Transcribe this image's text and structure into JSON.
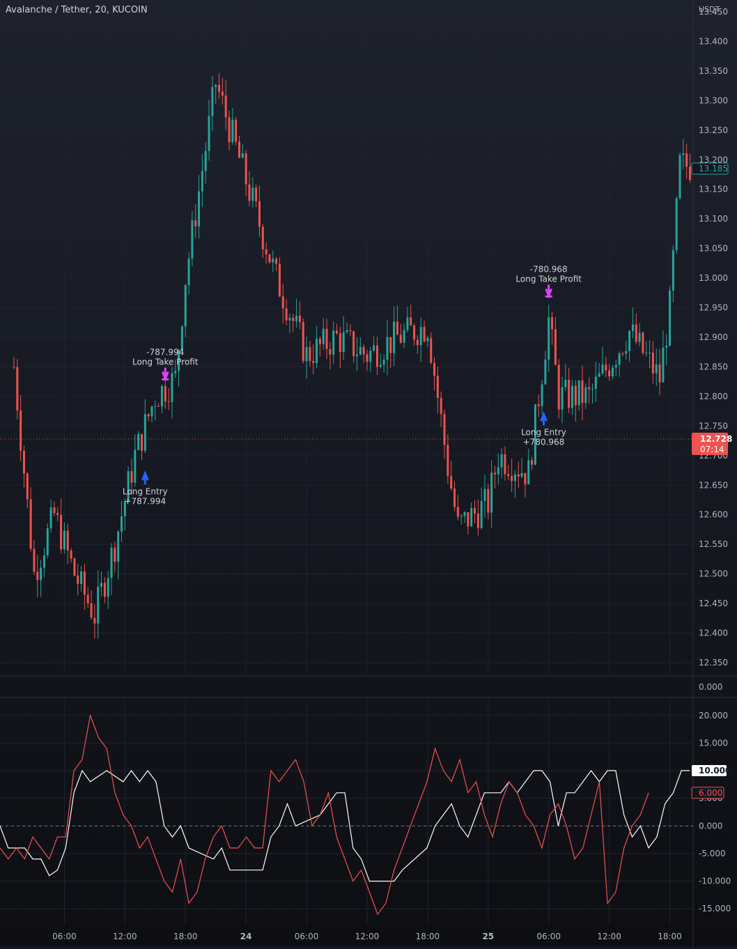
{
  "header": {
    "title": "Avalanche / Tether, 20, KUCOIN",
    "currency": "USDT"
  },
  "price_axis": {
    "ticks": [
      "13.450",
      "13.400",
      "13.350",
      "13.300",
      "13.250",
      "13.200",
      "13.150",
      "13.100",
      "13.050",
      "13.000",
      "12.950",
      "12.900",
      "12.850",
      "12.800",
      "12.750",
      "12.700",
      "12.650",
      "12.600",
      "12.550",
      "12.500",
      "12.450",
      "12.400",
      "12.350"
    ],
    "last_price_label": "13.185",
    "current_price_label": "12.728",
    "countdown_label": "07:14",
    "separator_value_label": "0.000"
  },
  "indicator_axis": {
    "ticks": [
      "20.000",
      "15.000",
      "10.000",
      "5.000",
      "0.000",
      "-5.000",
      "-10.000",
      "-15.000"
    ],
    "white_value_label": "10.000",
    "red_value_label": "6.000"
  },
  "time_axis": {
    "labels": [
      "06:00",
      "12:00",
      "18:00",
      "24",
      "06:00",
      "12:00",
      "18:00",
      "25",
      "06:00",
      "12:00",
      "18:00"
    ],
    "bold_labels": [
      "24",
      "25"
    ]
  },
  "trades": [
    {
      "entry_label": "Long Entry",
      "entry_value": "+787.994",
      "exit_label": "Long Take Profit",
      "exit_value": "-787.994"
    },
    {
      "entry_label": "Long Entry",
      "entry_value": "+780.968",
      "exit_label": "Long Take Profit",
      "exit_value": "-780.968"
    }
  ],
  "colors": {
    "background": "#131722",
    "up": "#26a69a",
    "down": "#ef5350",
    "entry_marker": "#2962ff",
    "exit_marker": "#e040fb",
    "white_line": "#ffffff",
    "red_line": "#ef5350"
  },
  "chart_data": [
    {
      "type": "candlestick",
      "title": "Avalanche / Tether, 20, KUCOIN",
      "ylabel": "USDT",
      "ylim": [
        12.33,
        13.47
      ],
      "x_range_hours": [
        "Jun 23 ~01:00",
        "Jun 25 ~21:00"
      ],
      "interval_minutes": 20,
      "current_price": 12.728,
      "last_close": 13.185,
      "approx_path_keypoints": [
        {
          "time": "23 01:00",
          "price": 12.85
        },
        {
          "time": "23 03:00",
          "price": 12.5
        },
        {
          "time": "23 05:00",
          "price": 12.6
        },
        {
          "time": "23 07:00",
          "price": 12.5
        },
        {
          "time": "23 09:00",
          "price": 12.43
        },
        {
          "time": "23 11:00",
          "price": 12.55
        },
        {
          "time": "23 13:00",
          "price": 12.7
        },
        {
          "time": "23 15:00",
          "price": 12.8
        },
        {
          "time": "23 17:00",
          "price": 12.83
        },
        {
          "time": "23 18:00",
          "price": 13.0
        },
        {
          "time": "23 21:00",
          "price": 13.33
        },
        {
          "time": "23 23:00",
          "price": 13.22
        },
        {
          "time": "24 03:00",
          "price": 13.0
        },
        {
          "time": "24 06:00",
          "price": 12.87
        },
        {
          "time": "24 09:00",
          "price": 12.9
        },
        {
          "time": "24 12:00",
          "price": 12.87
        },
        {
          "time": "24 15:00",
          "price": 12.9
        },
        {
          "time": "24 18:00",
          "price": 12.92
        },
        {
          "time": "24 20:00",
          "price": 12.68
        },
        {
          "time": "24 21:00",
          "price": 12.58
        },
        {
          "time": "25 00:00",
          "price": 12.62
        },
        {
          "time": "25 01:00",
          "price": 12.7
        },
        {
          "time": "25 04:00",
          "price": 12.67
        },
        {
          "time": "25 05:00",
          "price": 12.8
        },
        {
          "time": "25 06:00",
          "price": 12.93
        },
        {
          "time": "25 07:00",
          "price": 12.8
        },
        {
          "time": "25 10:00",
          "price": 12.8
        },
        {
          "time": "25 14:00",
          "price": 12.91
        },
        {
          "time": "25 17:00",
          "price": 12.83
        },
        {
          "time": "25 18:00",
          "price": 12.95
        },
        {
          "time": "25 19:00",
          "price": 13.19
        }
      ],
      "annotations": [
        {
          "text": "Long Entry +787.994",
          "time": "23 14:00",
          "price": 12.67
        },
        {
          "text": "Long Take Profit -787.994",
          "time": "23 16:00",
          "price": 12.83
        },
        {
          "text": "Long Entry +780.968",
          "time": "25 05:30",
          "price": 12.77
        },
        {
          "text": "Long Take Profit -780.968",
          "time": "25 06:00",
          "price": 12.97
        }
      ]
    },
    {
      "type": "line",
      "ylim": [
        -18,
        23
      ],
      "zero_line": true,
      "series": [
        {
          "color": "#ffffff",
          "last_value": 10.0,
          "points": [
            [
              1,
              0
            ],
            [
              2,
              -4
            ],
            [
              4,
              -4
            ],
            [
              5,
              -6
            ],
            [
              6,
              -6
            ],
            [
              7,
              -9
            ],
            [
              8,
              -8
            ],
            [
              9,
              -4
            ],
            [
              10,
              6
            ],
            [
              11,
              10
            ],
            [
              12,
              8
            ],
            [
              14,
              10
            ],
            [
              16,
              8
            ],
            [
              17,
              10
            ],
            [
              18,
              8
            ],
            [
              19,
              10
            ],
            [
              20,
              8
            ],
            [
              21,
              0
            ],
            [
              22,
              -2
            ],
            [
              23,
              0
            ],
            [
              24,
              -4
            ],
            [
              27,
              -6
            ],
            [
              28,
              -4
            ],
            [
              29,
              -8
            ],
            [
              33,
              -8
            ],
            [
              34,
              -2
            ],
            [
              35,
              0
            ],
            [
              36,
              4
            ],
            [
              37,
              0
            ],
            [
              40,
              2
            ],
            [
              41,
              4
            ],
            [
              42,
              6
            ],
            [
              43,
              6
            ],
            [
              44,
              -4
            ],
            [
              45,
              -6
            ],
            [
              46,
              -10
            ],
            [
              49,
              -10
            ],
            [
              50,
              -8
            ],
            [
              53,
              -4
            ],
            [
              54,
              0
            ],
            [
              55,
              2
            ],
            [
              56,
              4
            ],
            [
              57,
              0
            ],
            [
              58,
              -2
            ],
            [
              59,
              2
            ],
            [
              60,
              6
            ],
            [
              62,
              6
            ],
            [
              63,
              8
            ],
            [
              64,
              6
            ],
            [
              65,
              8
            ],
            [
              66,
              10
            ],
            [
              67,
              10
            ],
            [
              68,
              8
            ],
            [
              69,
              0
            ],
            [
              70,
              6
            ],
            [
              71,
              6
            ],
            [
              72,
              8
            ],
            [
              73,
              10
            ],
            [
              74,
              8
            ],
            [
              75,
              10
            ],
            [
              76,
              10
            ],
            [
              77,
              2
            ],
            [
              78,
              -2
            ],
            [
              79,
              0
            ],
            [
              80,
              -4
            ],
            [
              81,
              -2
            ],
            [
              82,
              4
            ],
            [
              83,
              6
            ],
            [
              84,
              10
            ],
            [
              85,
              10
            ]
          ]
        },
        {
          "color": "#ef5350",
          "last_value": 6.0,
          "points": [
            [
              1,
              -4
            ],
            [
              2,
              -6
            ],
            [
              3,
              -4
            ],
            [
              4,
              -6
            ],
            [
              5,
              -2
            ],
            [
              6,
              -4
            ],
            [
              7,
              -6
            ],
            [
              8,
              -2
            ],
            [
              9,
              -2
            ],
            [
              10,
              10
            ],
            [
              11,
              12
            ],
            [
              12,
              20
            ],
            [
              13,
              16
            ],
            [
              14,
              14
            ],
            [
              15,
              6
            ],
            [
              16,
              2
            ],
            [
              17,
              0
            ],
            [
              18,
              -4
            ],
            [
              19,
              -2
            ],
            [
              20,
              -6
            ],
            [
              21,
              -10
            ],
            [
              22,
              -12
            ],
            [
              23,
              -6
            ],
            [
              24,
              -14
            ],
            [
              25,
              -12
            ],
            [
              26,
              -6
            ],
            [
              27,
              -2
            ],
            [
              28,
              0
            ],
            [
              29,
              -4
            ],
            [
              30,
              -4
            ],
            [
              31,
              -2
            ],
            [
              32,
              -4
            ],
            [
              33,
              -4
            ],
            [
              34,
              10
            ],
            [
              35,
              8
            ],
            [
              36,
              10
            ],
            [
              37,
              12
            ],
            [
              38,
              8
            ],
            [
              39,
              0
            ],
            [
              40,
              2
            ],
            [
              41,
              6
            ],
            [
              42,
              -2
            ],
            [
              43,
              -6
            ],
            [
              44,
              -10
            ],
            [
              45,
              -8
            ],
            [
              46,
              -12
            ],
            [
              47,
              -16
            ],
            [
              48,
              -14
            ],
            [
              49,
              -8
            ],
            [
              50,
              -4
            ],
            [
              51,
              0
            ],
            [
              52,
              4
            ],
            [
              53,
              8
            ],
            [
              54,
              14
            ],
            [
              55,
              10
            ],
            [
              56,
              8
            ],
            [
              57,
              12
            ],
            [
              58,
              6
            ],
            [
              59,
              8
            ],
            [
              60,
              2
            ],
            [
              61,
              -2
            ],
            [
              62,
              4
            ],
            [
              63,
              8
            ],
            [
              64,
              6
            ],
            [
              65,
              2
            ],
            [
              66,
              0
            ],
            [
              67,
              -4
            ],
            [
              68,
              2
            ],
            [
              69,
              4
            ],
            [
              70,
              0
            ],
            [
              71,
              -6
            ],
            [
              72,
              -4
            ],
            [
              73,
              2
            ],
            [
              74,
              8
            ],
            [
              75,
              -14
            ],
            [
              76,
              -12
            ],
            [
              77,
              -4
            ],
            [
              78,
              0
            ],
            [
              79,
              2
            ],
            [
              80,
              6
            ]
          ]
        }
      ]
    }
  ]
}
